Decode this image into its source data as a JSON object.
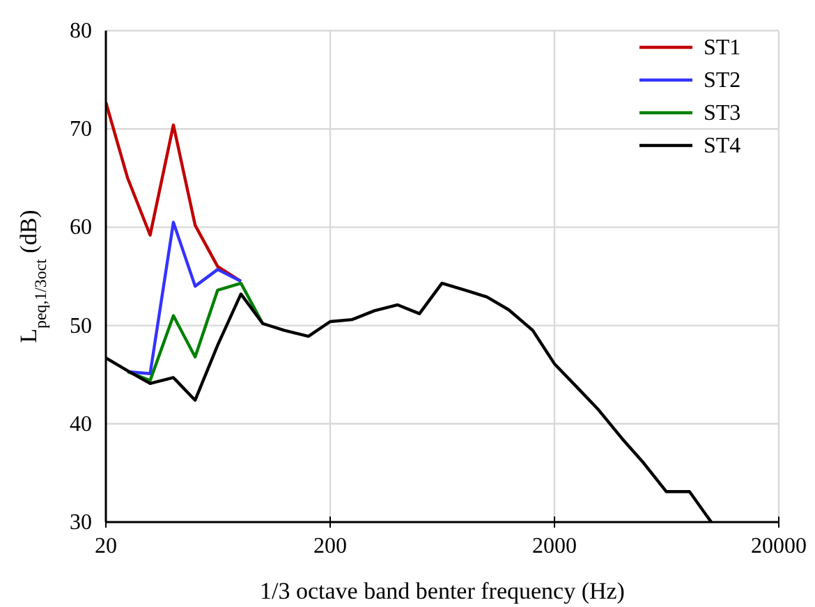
{
  "chart_data": {
    "type": "line",
    "xlabel": "1/3 octave band benter frequency (Hz)",
    "ylabel": "L$_{peq,1/3oct}$ (dB)",
    "log": "x",
    "xlim": [
      20,
      20000
    ],
    "xticks": [
      20,
      200,
      2000,
      20000
    ],
    "ylim": [
      30,
      80
    ],
    "yticks": [
      30,
      40,
      50,
      60,
      70,
      80
    ],
    "grid": true,
    "legend": "top right",
    "marker": "none",
    "line_style": "solid",
    "x": [
      20,
      25,
      31.5,
      40,
      50,
      63,
      80,
      100,
      125,
      160,
      200,
      250,
      315,
      400,
      500,
      630,
      800,
      1000,
      1250,
      1600,
      2000,
      2500,
      3150,
      4000,
      5000,
      6300,
      8000,
      10000
    ],
    "series": [
      {
        "name": "ST1",
        "color": "#c00000",
        "values": [
          72.7,
          65.0,
          59.2,
          70.4,
          60.2,
          56.0,
          54.5,
          null,
          null,
          null,
          null,
          null,
          null,
          null,
          null,
          null,
          null,
          null,
          null,
          null,
          null,
          null,
          null,
          null,
          null,
          null,
          null,
          null
        ]
      },
      {
        "name": "ST2",
        "color": "#3333ff",
        "values": [
          null,
          45.3,
          45.1,
          60.5,
          54.0,
          55.7,
          54.5,
          null,
          null,
          null,
          null,
          null,
          null,
          null,
          null,
          null,
          null,
          null,
          null,
          null,
          null,
          null,
          null,
          null,
          null,
          null,
          null,
          null
        ]
      },
      {
        "name": "ST3",
        "color": "#008000",
        "values": [
          null,
          45.3,
          44.4,
          51.0,
          46.8,
          53.6,
          54.3,
          50.2,
          null,
          null,
          null,
          null,
          null,
          null,
          null,
          null,
          null,
          null,
          null,
          null,
          null,
          null,
          null,
          null,
          null,
          null,
          null,
          null
        ]
      },
      {
        "name": "ST4",
        "color": "#000000",
        "values": [
          46.7,
          45.4,
          44.1,
          44.7,
          42.4,
          48.0,
          53.2,
          50.2,
          49.5,
          48.9,
          50.4,
          50.6,
          51.5,
          52.1,
          51.2,
          54.3,
          53.6,
          52.9,
          51.6,
          49.5,
          46.1,
          43.8,
          41.4,
          38.5,
          36.0,
          33.1,
          33.1,
          30
        ]
      }
    ]
  }
}
